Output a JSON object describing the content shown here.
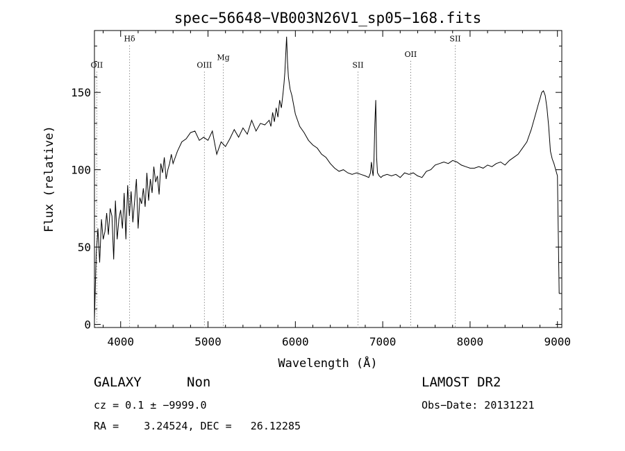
{
  "chart_data": {
    "type": "line",
    "title": "spec−56648−VB003N26V1_sp05−168.fits",
    "xlabel": "Wavelength (Å)",
    "ylabel": "Flux (relative)",
    "xlim": [
      3700,
      9050
    ],
    "ylim": [
      -2,
      190
    ],
    "x_ticks": [
      4000,
      5000,
      6000,
      7000,
      8000,
      9000
    ],
    "y_ticks": [
      0,
      50,
      100,
      150
    ],
    "line_color": "#000000",
    "marker_line_color": "#555555",
    "line_markers": [
      {
        "label": "OII",
        "x": 3727,
        "y": 166
      },
      {
        "label": "Hδ",
        "x": 4102,
        "y": 183
      },
      {
        "label": "OIII",
        "x": 4959,
        "y": 166
      },
      {
        "label": "Mg",
        "x": 5175,
        "y": 171
      },
      {
        "label": "SII",
        "x": 6717,
        "y": 166
      },
      {
        "label": "OII",
        "x": 7320,
        "y": 173
      },
      {
        "label": "SII",
        "x": 7830,
        "y": 183
      }
    ],
    "series": [
      {
        "x": [
          3700,
          3720,
          3740,
          3760,
          3780,
          3800,
          3820,
          3840,
          3860,
          3880,
          3900,
          3920,
          3940,
          3960,
          3980,
          4000,
          4020,
          4040,
          4060,
          4080,
          4100,
          4120,
          4140,
          4160,
          4180,
          4200,
          4220,
          4240,
          4260,
          4280,
          4300,
          4320,
          4340,
          4360,
          4380,
          4400,
          4420,
          4440,
          4460,
          4480,
          4500,
          4520,
          4540,
          4560,
          4580,
          4600,
          4650,
          4700,
          4750,
          4800,
          4850,
          4900,
          4950,
          5000,
          5050,
          5100,
          5150,
          5200,
          5250,
          5300,
          5350,
          5400,
          5450,
          5500,
          5550,
          5600,
          5650,
          5700,
          5720,
          5740,
          5760,
          5780,
          5800,
          5820,
          5840,
          5860,
          5870,
          5880,
          5890,
          5900,
          5910,
          5920,
          5940,
          5960,
          5980,
          6000,
          6050,
          6100,
          6150,
          6200,
          6250,
          6300,
          6350,
          6400,
          6450,
          6500,
          6550,
          6600,
          6650,
          6700,
          6750,
          6800,
          6840,
          6860,
          6870,
          6880,
          6890,
          6900,
          6910,
          6920,
          6930,
          6940,
          6960,
          6980,
          7000,
          7050,
          7100,
          7150,
          7200,
          7250,
          7300,
          7350,
          7400,
          7450,
          7500,
          7550,
          7600,
          7650,
          7700,
          7750,
          7800,
          7850,
          7900,
          7950,
          8000,
          8050,
          8100,
          8150,
          8200,
          8250,
          8300,
          8350,
          8400,
          8450,
          8500,
          8550,
          8600,
          8650,
          8700,
          8750,
          8780,
          8800,
          8820,
          8840,
          8860,
          8880,
          8900,
          8920,
          8940,
          8960,
          8980,
          9000,
          9020
        ],
        "y": [
          3,
          45,
          62,
          40,
          68,
          55,
          60,
          72,
          58,
          75,
          70,
          42,
          80,
          55,
          68,
          74,
          62,
          85,
          55,
          90,
          70,
          86,
          66,
          80,
          94,
          62,
          82,
          78,
          88,
          76,
          98,
          80,
          94,
          85,
          102,
          92,
          96,
          84,
          104,
          98,
          108,
          94,
          100,
          104,
          110,
          104,
          112,
          118,
          120,
          124,
          125,
          119,
          121,
          119,
          125,
          110,
          118,
          115,
          120,
          126,
          121,
          127,
          123,
          132,
          125,
          130,
          129,
          132,
          128,
          137,
          131,
          140,
          134,
          145,
          140,
          150,
          156,
          163,
          175,
          186,
          170,
          160,
          152,
          148,
          142,
          136,
          128,
          124,
          119,
          116,
          114,
          110,
          108,
          104,
          101,
          99,
          100,
          98,
          97,
          98,
          97,
          96,
          95,
          98,
          105,
          100,
          96,
          106,
          130,
          145,
          108,
          98,
          96,
          95,
          96,
          97,
          96,
          97,
          95,
          98,
          97,
          98,
          96,
          95,
          99,
          100,
          103,
          104,
          105,
          104,
          106,
          105,
          103,
          102,
          101,
          101,
          102,
          101,
          103,
          102,
          104,
          105,
          103,
          106,
          108,
          110,
          114,
          118,
          126,
          136,
          142,
          146,
          150,
          151,
          148,
          140,
          128,
          112,
          107,
          104,
          100,
          96,
          20
        ]
      }
    ]
  },
  "info": {
    "object_class": "GALAXY",
    "subclass": "Non",
    "survey": "LAMOST DR2",
    "redshift_line": "cz = 0.1 ± −9999.0",
    "obs_date": "Obs−Date: 20131221",
    "coords": "RA =    3.24524, DEC =   26.12285"
  }
}
